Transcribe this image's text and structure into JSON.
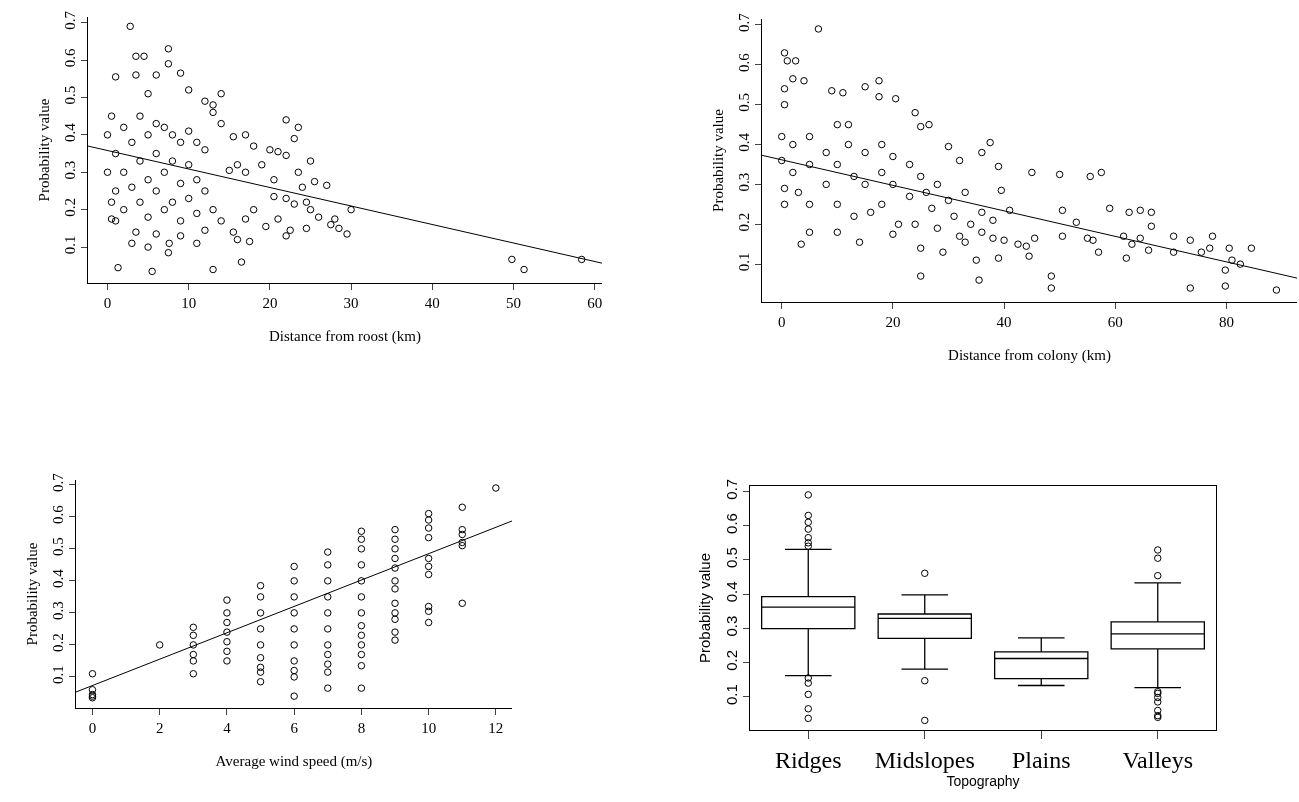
{
  "chart_data": [
    {
      "type": "scatter",
      "xlabel": "Distance from roost (km)",
      "ylabel": "Probability value",
      "xlim": [
        -2.4,
        60.9
      ],
      "ylim": [
        0.004,
        0.715
      ],
      "xticks": [
        0,
        10,
        20,
        30,
        40,
        50,
        60
      ],
      "yticks": [
        0.1,
        0.2,
        0.3,
        0.4,
        0.5,
        0.6,
        0.7
      ],
      "grid": false,
      "series": [
        {
          "color": "#000000",
          "marker": "circle",
          "x": [
            2.8,
            3.5,
            4.5,
            7.5,
            7.5,
            9,
            6,
            1,
            3.5,
            5,
            10,
            14,
            12,
            13,
            22,
            23.5,
            13,
            14,
            23,
            17,
            15.5,
            18,
            20,
            21,
            22,
            25,
            27,
            23.5,
            25.5,
            20.5,
            19,
            16,
            17,
            15,
            24,
            22,
            25,
            26,
            28,
            28.5,
            29.5,
            30,
            27.5,
            24.5,
            22,
            22.5,
            21,
            19.5,
            18,
            17,
            16,
            17.5,
            15.5,
            16.5,
            13,
            5.5,
            1.3,
            49.8,
            51.3,
            58.4,
            11,
            9,
            7.5,
            7.6,
            5,
            3,
            3.5,
            6,
            0.5,
            1,
            12,
            14,
            13,
            20.5,
            23,
            24.5,
            0,
            0,
            0.5,
            0.5,
            1,
            1,
            2,
            2,
            2,
            3,
            3,
            4,
            4,
            4,
            5,
            5,
            5,
            6,
            6,
            6,
            7,
            7,
            7,
            8,
            8,
            8,
            9,
            9,
            9,
            10,
            10,
            10,
            11,
            11,
            11,
            12,
            12
          ],
          "values": [
            0.69,
            0.61,
            0.61,
            0.63,
            0.59,
            0.565,
            0.56,
            0.555,
            0.56,
            0.51,
            0.52,
            0.51,
            0.49,
            0.48,
            0.44,
            0.42,
            0.46,
            0.43,
            0.39,
            0.4,
            0.395,
            0.37,
            0.36,
            0.355,
            0.345,
            0.33,
            0.265,
            0.3,
            0.275,
            0.28,
            0.32,
            0.32,
            0.3,
            0.305,
            0.26,
            0.23,
            0.2,
            0.18,
            0.175,
            0.15,
            0.135,
            0.2,
            0.16,
            0.15,
            0.13,
            0.145,
            0.175,
            0.155,
            0.2,
            0.175,
            0.12,
            0.115,
            0.14,
            0.06,
            0.04,
            0.035,
            0.045,
            0.067,
            0.04,
            0.067,
            0.11,
            0.13,
            0.085,
            0.11,
            0.1,
            0.11,
            0.14,
            0.135,
            0.175,
            0.17,
            0.145,
            0.17,
            0.2,
            0.235,
            0.215,
            0.22,
            0.3,
            0.4,
            0.45,
            0.22,
            0.35,
            0.25,
            0.42,
            0.3,
            0.2,
            0.38,
            0.26,
            0.45,
            0.33,
            0.22,
            0.4,
            0.28,
            0.18,
            0.43,
            0.35,
            0.25,
            0.42,
            0.3,
            0.2,
            0.4,
            0.33,
            0.22,
            0.38,
            0.27,
            0.17,
            0.41,
            0.32,
            0.23,
            0.38,
            0.28,
            0.19,
            0.36,
            0.25
          ]
        },
        {
          "type": "line",
          "marker": "none",
          "color": "#000000",
          "x": [
            -2.4,
            60.9
          ],
          "values": [
            0.37,
            0.057
          ]
        }
      ]
    },
    {
      "type": "scatter",
      "xlabel": "Distance from colony (km)",
      "ylabel": "Probability value",
      "xlim": [
        -3.55,
        92.7
      ],
      "ylim": [
        0.005,
        0.715
      ],
      "xticks": [
        0,
        20,
        40,
        60,
        80
      ],
      "yticks": [
        0.1,
        0.2,
        0.3,
        0.4,
        0.5,
        0.6,
        0.7
      ],
      "grid": false,
      "series": [
        {
          "color": "#000000",
          "marker": "circle",
          "x": [
            6.6,
            0.5,
            2.5,
            1,
            2,
            4,
            0.5,
            9,
            11,
            15,
            17.5,
            20.5,
            24,
            17.5,
            25,
            26.5,
            30,
            37.5,
            36,
            32,
            39,
            45,
            50,
            55.5,
            57.5,
            39.5,
            59,
            50.5,
            53,
            62.5,
            64.5,
            66.5,
            66.5,
            61.5,
            63,
            64.5,
            66,
            70.5,
            73.5,
            77.5,
            80.5,
            84.5,
            70.5,
            75.5,
            77,
            62,
            57,
            56,
            55,
            50.5,
            45.5,
            44,
            44.5,
            42.5,
            41,
            40,
            39,
            35,
            35.5,
            25,
            48.5,
            48.5,
            73.5,
            79.8,
            79.8,
            81,
            82.5,
            89,
            3.5,
            14,
            25,
            29,
            33,
            38,
            20,
            5,
            10,
            0.5,
            0.5,
            0,
            0,
            0.5,
            2,
            2,
            3,
            5,
            5,
            5,
            8,
            8,
            10,
            10,
            10,
            12,
            12,
            13,
            13,
            15,
            15,
            16,
            18,
            18,
            18,
            20,
            20,
            21,
            23,
            23,
            24,
            25,
            26,
            27,
            28,
            28,
            30,
            31,
            32,
            33,
            34,
            36,
            36,
            38
          ],
          "values": [
            0.69,
            0.63,
            0.61,
            0.61,
            0.565,
            0.56,
            0.54,
            0.535,
            0.53,
            0.545,
            0.56,
            0.515,
            0.48,
            0.52,
            0.445,
            0.45,
            0.395,
            0.405,
            0.38,
            0.36,
            0.345,
            0.33,
            0.325,
            0.32,
            0.33,
            0.285,
            0.24,
            0.235,
            0.205,
            0.23,
            0.235,
            0.23,
            0.195,
            0.17,
            0.15,
            0.165,
            0.135,
            0.17,
            0.16,
            0.17,
            0.14,
            0.14,
            0.13,
            0.13,
            0.14,
            0.115,
            0.13,
            0.16,
            0.165,
            0.17,
            0.165,
            0.145,
            0.12,
            0.15,
            0.235,
            0.16,
            0.115,
            0.11,
            0.06,
            0.07,
            0.07,
            0.04,
            0.04,
            0.045,
            0.085,
            0.11,
            0.1,
            0.035,
            0.15,
            0.155,
            0.14,
            0.13,
            0.155,
            0.165,
            0.175,
            0.18,
            0.18,
            0.25,
            0.29,
            0.36,
            0.42,
            0.5,
            0.4,
            0.33,
            0.28,
            0.42,
            0.35,
            0.25,
            0.38,
            0.3,
            0.45,
            0.35,
            0.25,
            0.45,
            0.4,
            0.32,
            0.22,
            0.38,
            0.3,
            0.23,
            0.4,
            0.33,
            0.25,
            0.37,
            0.3,
            0.2,
            0.35,
            0.27,
            0.2,
            0.32,
            0.28,
            0.24,
            0.3,
            0.19,
            0.26,
            0.22,
            0.17,
            0.28,
            0.2,
            0.23,
            0.18,
            0.21
          ]
        },
        {
          "type": "line",
          "marker": "none",
          "color": "#000000",
          "x": [
            -3.55,
            92.7
          ],
          "values": [
            0.373,
            0.065
          ]
        }
      ]
    },
    {
      "type": "scatter",
      "xlabel": "Average wind speed (m/s)",
      "ylabel": "Probability value",
      "xlim": [
        -0.49,
        12.48
      ],
      "ylim": [
        0.003,
        0.715
      ],
      "xticks": [
        0,
        2,
        4,
        6,
        8,
        10,
        12
      ],
      "yticks": [
        0.1,
        0.2,
        0.3,
        0.4,
        0.5,
        0.6,
        0.7
      ],
      "grid": false,
      "series": [
        {
          "color": "#000000",
          "marker": "circle",
          "x": [
            0,
            0,
            0,
            0,
            0,
            2,
            3,
            3,
            3,
            3,
            3,
            3,
            4,
            4,
            4,
            4,
            4,
            4,
            4,
            5,
            5,
            5,
            5,
            5,
            5,
            5,
            5,
            5,
            6,
            6,
            6,
            6,
            6,
            6,
            6,
            6,
            6,
            6,
            7,
            7,
            7,
            7,
            7,
            7,
            7,
            7,
            7,
            7,
            7,
            8,
            8,
            8,
            8,
            8,
            8,
            8,
            8,
            8,
            8,
            8,
            8,
            8,
            9,
            9,
            9,
            9,
            9,
            9,
            9,
            9,
            9,
            9,
            9,
            9,
            10,
            10,
            10,
            10,
            10,
            10,
            10,
            10,
            10,
            10,
            11,
            11,
            11,
            11,
            11,
            11,
            12
          ],
          "values": [
            0.11,
            0.06,
            0.045,
            0.04,
            0.035,
            0.2,
            0.11,
            0.15,
            0.17,
            0.2,
            0.23,
            0.255,
            0.15,
            0.18,
            0.21,
            0.24,
            0.27,
            0.3,
            0.34,
            0.085,
            0.115,
            0.13,
            0.16,
            0.2,
            0.25,
            0.3,
            0.35,
            0.385,
            0.04,
            0.1,
            0.12,
            0.15,
            0.2,
            0.25,
            0.3,
            0.35,
            0.4,
            0.445,
            0.065,
            0.115,
            0.14,
            0.17,
            0.2,
            0.25,
            0.3,
            0.35,
            0.4,
            0.45,
            0.49,
            0.065,
            0.135,
            0.17,
            0.2,
            0.23,
            0.26,
            0.3,
            0.35,
            0.4,
            0.45,
            0.5,
            0.53,
            0.555,
            0.215,
            0.24,
            0.28,
            0.3,
            0.33,
            0.375,
            0.4,
            0.44,
            0.47,
            0.5,
            0.53,
            0.56,
            0.27,
            0.305,
            0.32,
            0.42,
            0.445,
            0.47,
            0.535,
            0.565,
            0.59,
            0.61,
            0.33,
            0.51,
            0.52,
            0.545,
            0.56,
            0.63,
            0.69
          ]
        },
        {
          "type": "line",
          "marker": "none",
          "color": "#000000",
          "x": [
            -0.49,
            12.48
          ],
          "values": [
            0.053,
            0.587
          ]
        }
      ]
    },
    {
      "type": "box",
      "xlabel": "Topography",
      "ylabel": "Probability value",
      "categories": [
        "Ridges",
        "Midslopes",
        "Plains",
        "Valleys"
      ],
      "ylim": [
        0.003,
        0.716
      ],
      "yticks": [
        0.1,
        0.2,
        0.3,
        0.4,
        0.5,
        0.6,
        0.7
      ],
      "marker": "circle",
      "grid": false,
      "color": "#000000",
      "boxes": [
        {
          "low": 0.162,
          "q1": 0.299,
          "median": 0.362,
          "q3": 0.393,
          "high": 0.531,
          "outliers": [
            0.69,
            0.63,
            0.61,
            0.59,
            0.565,
            0.55,
            0.54,
            0.155,
            0.14,
            0.107,
            0.065,
            0.037
          ]
        },
        {
          "low": 0.181,
          "q1": 0.271,
          "median": 0.329,
          "q3": 0.342,
          "high": 0.398,
          "outliers": [
            0.461,
            0.147,
            0.031
          ]
        },
        {
          "low": 0.133,
          "q1": 0.153,
          "median": 0.212,
          "q3": 0.231,
          "high": 0.272
        },
        {
          "low": 0.127,
          "q1": 0.24,
          "median": 0.284,
          "q3": 0.319,
          "high": 0.433,
          "outliers": [
            0.529,
            0.505,
            0.454,
            0.115,
            0.11,
            0.098,
            0.085,
            0.06,
            0.045,
            0.04
          ]
        }
      ]
    }
  ]
}
